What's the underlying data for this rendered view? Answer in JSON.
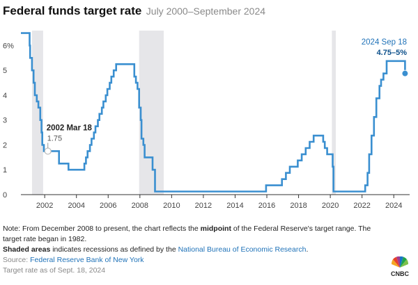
{
  "header": {
    "title": "Federal funds target rate",
    "subtitle": "July 2000–September 2024"
  },
  "colors": {
    "line": "#3a8fd0",
    "recession": "#e6e6e9",
    "axis": "#333333"
  },
  "chart_data": {
    "type": "line",
    "title": "Federal funds target rate",
    "subtitle": "July 2000–September 2024",
    "xlabel": "",
    "ylabel": "",
    "xlim": [
      2000.5,
      2025.0
    ],
    "ylim": [
      0,
      6.6
    ],
    "x_ticks": [
      2002,
      2004,
      2006,
      2008,
      2010,
      2012,
      2014,
      2016,
      2018,
      2020,
      2022,
      2024
    ],
    "y_ticks": [
      {
        "value": 0,
        "label": "0"
      },
      {
        "value": 1,
        "label": "1"
      },
      {
        "value": 2,
        "label": "2"
      },
      {
        "value": 3,
        "label": "3"
      },
      {
        "value": 4,
        "label": "4"
      },
      {
        "value": 5,
        "label": "5"
      },
      {
        "value": 6,
        "label": "6%"
      }
    ],
    "recessions": [
      [
        2001.2,
        2001.9
      ],
      [
        2007.95,
        2009.5
      ],
      [
        2020.1,
        2020.35
      ]
    ],
    "series": [
      {
        "name": "Federal funds target rate",
        "x": [
          2000.5,
          2001.0,
          2001.05,
          2001.08,
          2001.2,
          2001.3,
          2001.38,
          2001.5,
          2001.6,
          2001.72,
          2001.8,
          2001.85,
          2001.95,
          2002.9,
          2003.5,
          2004.5,
          2004.6,
          2004.7,
          2004.85,
          2004.95,
          2005.1,
          2005.2,
          2005.35,
          2005.45,
          2005.6,
          2005.7,
          2005.85,
          2005.95,
          2006.1,
          2006.2,
          2006.35,
          2006.5,
          2007.65,
          2007.75,
          2007.85,
          2007.95,
          2008.05,
          2008.1,
          2008.22,
          2008.3,
          2008.8,
          2008.95,
          2015.95,
          2016.95,
          2017.2,
          2017.45,
          2017.95,
          2018.2,
          2018.45,
          2018.7,
          2018.95,
          2019.55,
          2019.65,
          2019.8,
          2020.15,
          2020.2,
          2022.2,
          2022.35,
          2022.45,
          2022.6,
          2022.75,
          2022.9,
          2023.1,
          2023.2,
          2023.35,
          2023.55,
          2024.7,
          2024.71
        ],
        "y": [
          6.5,
          6.5,
          6.0,
          5.5,
          5.0,
          4.5,
          4.0,
          3.75,
          3.5,
          3.0,
          2.5,
          2.0,
          1.75,
          1.25,
          1.0,
          1.25,
          1.5,
          1.75,
          2.0,
          2.25,
          2.5,
          2.75,
          3.0,
          3.25,
          3.5,
          3.75,
          4.0,
          4.25,
          4.5,
          4.75,
          5.0,
          5.25,
          4.75,
          4.5,
          4.25,
          3.5,
          3.0,
          2.25,
          2.0,
          1.5,
          1.0,
          0.125,
          0.375,
          0.625,
          0.875,
          1.125,
          1.375,
          1.625,
          1.875,
          2.125,
          2.375,
          2.125,
          1.875,
          1.625,
          1.125,
          0.125,
          0.375,
          0.875,
          1.625,
          2.375,
          3.125,
          3.875,
          4.375,
          4.625,
          4.875,
          5.375,
          5.375,
          4.875
        ]
      }
    ],
    "annotations": [
      {
        "date": "2002 Mar 18",
        "value": "1.75",
        "x": 2002.2,
        "y": 1.75
      },
      {
        "date": "2024 Sep 18",
        "value": "4.75–5%",
        "x": 2024.71,
        "y": 4.875
      }
    ]
  },
  "footer": {
    "note_prefix": "Note: From December 2008 to present, the chart reflects the ",
    "note_bold": "midpoint",
    "note_suffix": " of the Federal Reserve's target range. The target rate began in 1982.",
    "shaded_bold": "Shaded areas",
    "shaded_text": " indicates recessions as defined by the ",
    "shaded_link": "National Bureau of Economic Research",
    "shaded_end": ".",
    "source_label": "Source: ",
    "source_link": "Federal Reserve Bank of New York",
    "asof": "Target rate as of Sept. 18, 2024"
  },
  "logo": {
    "text": "CNBC"
  }
}
